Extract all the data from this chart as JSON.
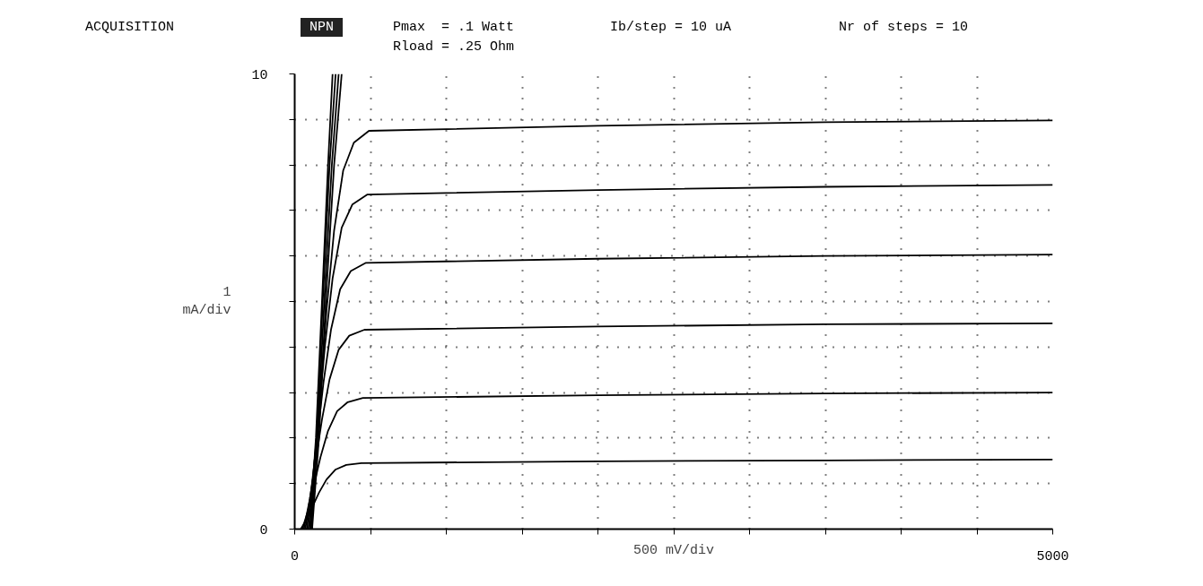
{
  "chart_data": {
    "type": "line",
    "annotations": [
      "ACQUISITION",
      "NPN",
      "Pmax  = .1 Watt",
      "Ib/step = 10 uA",
      "Nr of steps = 10",
      "Rload = .25 Ohm"
    ],
    "xlabel": "500 mV/div",
    "ylabel": "1\nmA/div",
    "xlim": [
      0,
      5000
    ],
    "ylim": [
      0,
      10
    ],
    "xticks": [
      0,
      {
        "value": 500,
        "label": null
      },
      {
        "value": 1000,
        "label": null
      },
      {
        "value": 1500,
        "label": null
      },
      {
        "value": 2000,
        "label": null
      },
      {
        "value": 2500,
        "label": null
      },
      {
        "value": 3000,
        "label": null
      },
      {
        "value": 3500,
        "label": null
      },
      {
        "value": 4000,
        "label": null
      },
      {
        "value": 4500,
        "label": null
      },
      5000
    ],
    "yticks": [
      0,
      {
        "value": 1,
        "label": null
      },
      {
        "value": 2,
        "label": null
      },
      {
        "value": 3,
        "label": null
      },
      {
        "value": 4,
        "label": null
      },
      {
        "value": 5,
        "label": null
      },
      {
        "value": 6,
        "label": null
      },
      {
        "value": 7,
        "label": null
      },
      {
        "value": 8,
        "label": null
      },
      {
        "value": 9,
        "label": null
      },
      10
    ],
    "grid": true,
    "line_style": "solid",
    "series": [
      {
        "color": "#000000",
        "x": [
          40,
          80,
          120,
          160,
          210,
          270,
          340,
          440,
          2000,
          3500,
          5000
        ],
        "values": [
          0,
          0.22,
          0.51,
          0.8,
          1.09,
          1.31,
          1.41,
          1.45,
          1.49,
          1.51,
          1.53
        ]
      },
      {
        "color": "#000000",
        "x": [
          50,
          90,
          130,
          170,
          220,
          280,
          350,
          450,
          2000,
          3500,
          5000
        ],
        "values": [
          0,
          0.43,
          1.01,
          1.58,
          2.16,
          2.59,
          2.79,
          2.88,
          2.94,
          2.98,
          3.0
        ]
      },
      {
        "color": "#000000",
        "x": [
          60,
          100,
          140,
          180,
          230,
          290,
          360,
          460,
          2000,
          3500,
          5000
        ],
        "values": [
          0,
          0.66,
          1.53,
          2.41,
          3.29,
          3.94,
          4.25,
          4.38,
          4.45,
          4.5,
          4.52
        ]
      },
      {
        "color": "#000000",
        "x": [
          70,
          110,
          150,
          190,
          240,
          300,
          370,
          470,
          2000,
          3500,
          5000
        ],
        "values": [
          0,
          0.88,
          2.05,
          3.22,
          4.39,
          5.27,
          5.67,
          5.85,
          5.94,
          6.0,
          6.03
        ]
      },
      {
        "color": "#000000",
        "x": [
          80,
          120,
          160,
          200,
          250,
          310,
          380,
          480,
          2000,
          3500,
          5000
        ],
        "values": [
          0,
          1.1,
          2.57,
          4.04,
          5.51,
          6.62,
          7.13,
          7.35,
          7.45,
          7.52,
          7.56
        ]
      },
      {
        "color": "#000000",
        "x": [
          90,
          130,
          170,
          210,
          260,
          320,
          390,
          490,
          2000,
          3500,
          5000
        ],
        "values": [
          0,
          1.31,
          3.06,
          4.81,
          6.56,
          7.88,
          8.49,
          8.75,
          8.86,
          8.94,
          8.98
        ]
      },
      {
        "color": "#000000",
        "x": [
          100,
          140,
          180,
          220,
          250
        ],
        "values": [
          0,
          2,
          5,
          8,
          10
        ]
      },
      {
        "color": "#000000",
        "x": [
          105,
          145,
          185,
          230,
          270
        ],
        "values": [
          0,
          2,
          5,
          8,
          10
        ]
      },
      {
        "color": "#000000",
        "x": [
          110,
          150,
          195,
          245,
          290
        ],
        "values": [
          0,
          2,
          5,
          8,
          10
        ]
      },
      {
        "color": "#000000",
        "x": [
          115,
          160,
          205,
          260,
          310
        ],
        "values": [
          0,
          2,
          5,
          8,
          10
        ]
      }
    ]
  }
}
